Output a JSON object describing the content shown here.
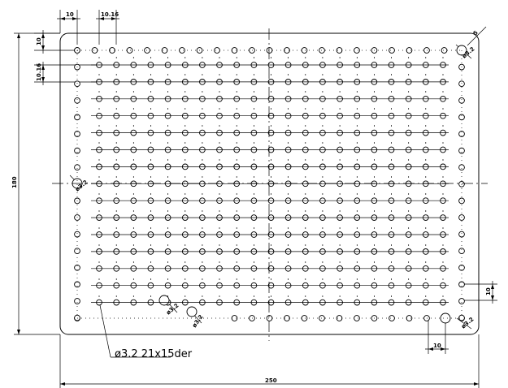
{
  "drawing": {
    "note": "ø3.2  21x15der",
    "dimensions": {
      "overall_width": "250",
      "overall_height": "180",
      "edge_offset_x": "10",
      "edge_offset_y": "10",
      "pitch_x": "10.16",
      "pitch_y": "10.16",
      "right_pitch": "10",
      "bottom_pitch": "10",
      "corner_size": "5"
    },
    "hole_labels": {
      "top_right": "ø3.2",
      "left_mid": "ø3.2",
      "bottom_mid_a": "ø3.2",
      "bottom_mid_b": "ø3.2",
      "bottom_right": "ø3.2"
    },
    "grid": {
      "columns": 21,
      "rows": 15
    }
  }
}
